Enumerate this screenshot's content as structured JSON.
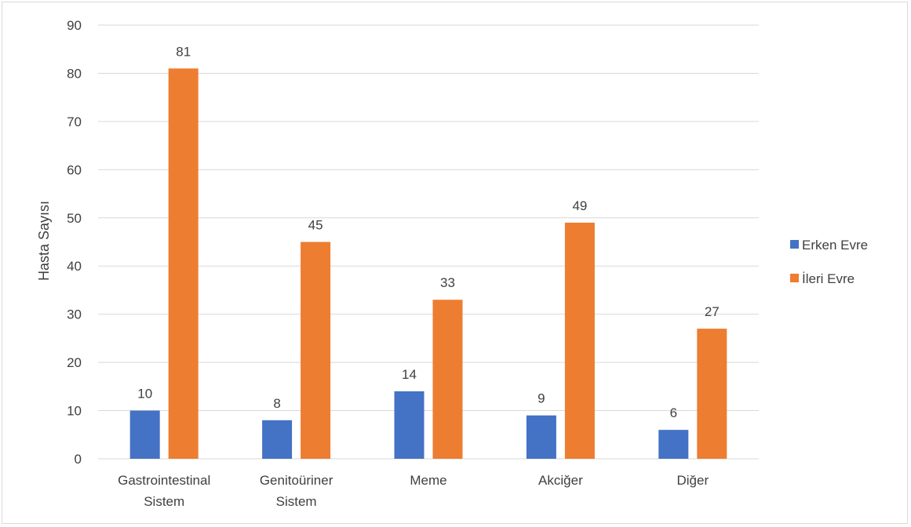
{
  "chart_data": {
    "type": "bar",
    "title": "",
    "xlabel": "",
    "ylabel": "Hasta Sayısı",
    "ylim": [
      0,
      90
    ],
    "yticks": [
      0,
      10,
      20,
      30,
      40,
      50,
      60,
      70,
      80,
      90
    ],
    "grid": true,
    "legend_position": "right",
    "categories": [
      [
        "Gastrointestinal",
        "Sistem"
      ],
      [
        "Genitoüriner",
        "Sistem"
      ],
      [
        "Meme"
      ],
      [
        "Akciğer"
      ],
      [
        "Diğer"
      ]
    ],
    "series": [
      {
        "name": "Erken Evre",
        "color": "#4472c4",
        "values": [
          10,
          8,
          14,
          9,
          6
        ]
      },
      {
        "name": "İleri Evre",
        "color": "#ed7d31",
        "values": [
          81,
          45,
          33,
          49,
          27
        ]
      }
    ]
  }
}
